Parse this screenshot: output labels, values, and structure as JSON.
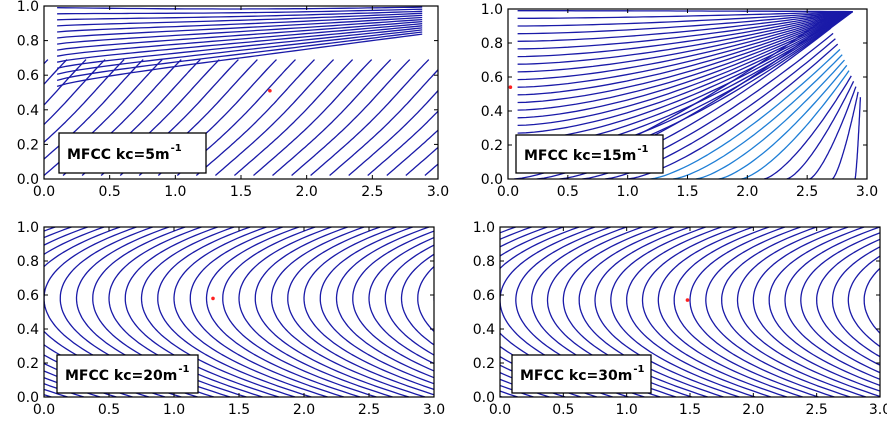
{
  "chart_data": [
    {
      "type": "contour",
      "annotation": "MFCC kc=5m",
      "annotation_sup": "-1",
      "xlim": [
        0.0,
        3.0
      ],
      "ylim": [
        0.0,
        1.0
      ],
      "xticks": [
        "0.0",
        "0.5",
        "1.0",
        "1.5",
        "2.0",
        "2.5",
        "3.0"
      ],
      "yticks": [
        "0.0",
        "0.2",
        "0.4",
        "0.6",
        "0.8",
        "1.0"
      ],
      "marker": {
        "x": 1.72,
        "y": 0.51,
        "color": "#ff2020"
      },
      "line_color": "#1a1aa8",
      "pattern": "tilted"
    },
    {
      "type": "contour",
      "annotation": "MFCC kc=15m",
      "annotation_sup": "-1",
      "xlim": [
        0.0,
        3.0
      ],
      "ylim": [
        0.0,
        1.0
      ],
      "xticks": [
        "0.0",
        "0.5",
        "1.0",
        "1.5",
        "2.0",
        "2.5",
        "3.0"
      ],
      "yticks": [
        "0.0",
        "0.2",
        "0.4",
        "0.6",
        "0.8",
        "1.0"
      ],
      "marker": {
        "x": 0.02,
        "y": 0.54,
        "color": "#ff2020"
      },
      "line_color": "#1a1aa8",
      "accent_color": "#1f7fd6",
      "pattern": "fan"
    },
    {
      "type": "contour",
      "annotation": "MFCC kc=20m",
      "annotation_sup": "-1",
      "xlim": [
        0.0,
        3.0
      ],
      "ylim": [
        0.0,
        1.0
      ],
      "xticks": [
        "0.0",
        "0.5",
        "1.0",
        "1.5",
        "2.0",
        "2.5",
        "3.0"
      ],
      "yticks": [
        "0.0",
        "0.2",
        "0.4",
        "0.6",
        "0.8",
        "1.0"
      ],
      "marker": {
        "x": 1.3,
        "y": 0.58,
        "color": "#ff2020"
      },
      "line_color": "#1a1aa8",
      "pattern": "chevron"
    },
    {
      "type": "contour",
      "annotation": "MFCC kc=30m",
      "annotation_sup": "-1",
      "xlim": [
        0.0,
        3.0
      ],
      "ylim": [
        0.0,
        1.0
      ],
      "xticks": [
        "0.0",
        "0.5",
        "1.0",
        "1.5",
        "2.0",
        "2.5",
        "3.0"
      ],
      "yticks": [
        "0.0",
        "0.2",
        "0.4",
        "0.6",
        "0.8",
        "1.0"
      ],
      "marker": {
        "x": 1.48,
        "y": 0.57,
        "color": "#ff2020"
      },
      "line_color": "#1a1aa8",
      "pattern": "chevron"
    }
  ]
}
